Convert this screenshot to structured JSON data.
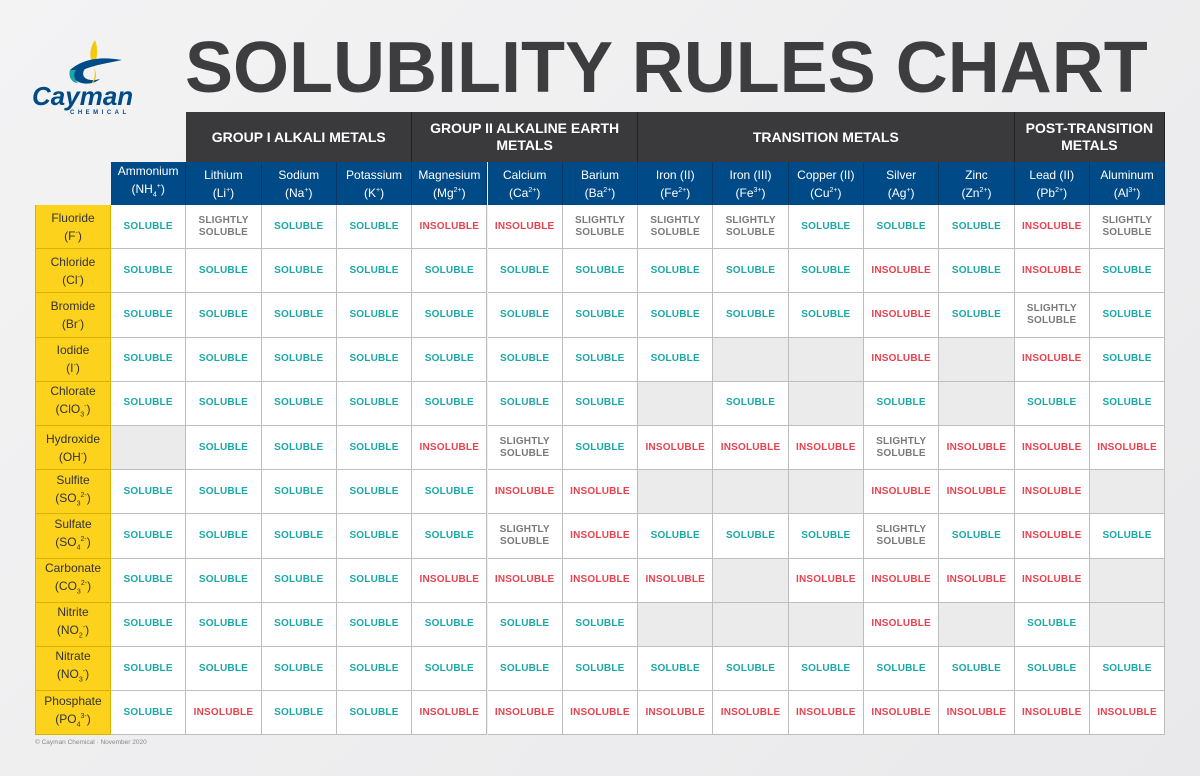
{
  "header": {
    "title": "SOLUBILITY RULES CHART",
    "logo_text": "Cayman",
    "logo_subtext": "CHEMICAL"
  },
  "footer": "© Cayman Chemical · November 2020",
  "colors": {
    "soluble": "#1aa8a6",
    "insoluble": "#e8424f",
    "slightly": "#7a7a7a",
    "cation_header": "#004b87",
    "anion_header": "#fdd21c",
    "group_header": "#3a3a3c",
    "empty": "#ebebec"
  },
  "chart_data": {
    "type": "table",
    "title": "SOLUBILITY RULES CHART",
    "groups": [
      {
        "label": "GROUP I ALKALI METALS",
        "start": 1,
        "span": 3
      },
      {
        "label": "GROUP II ALKALINE EARTH METALS",
        "start": 4,
        "span": 3
      },
      {
        "label": "TRANSITION METALS",
        "start": 7,
        "span": 5
      },
      {
        "label": "POST-TRANSITION METALS",
        "start": 12,
        "span": 2
      }
    ],
    "columns": [
      {
        "name": "Ammonium",
        "formula": [
          "NH",
          "4",
          "+"
        ]
      },
      {
        "name": "Lithium",
        "formula": [
          "Li",
          "",
          "+"
        ]
      },
      {
        "name": "Sodium",
        "formula": [
          "Na",
          "",
          "+"
        ]
      },
      {
        "name": "Potassium",
        "formula": [
          "K",
          "",
          "+"
        ]
      },
      {
        "name": "Magnesium",
        "formula": [
          "Mg",
          "",
          "2+"
        ]
      },
      {
        "name": "Calcium",
        "formula": [
          "Ca",
          "",
          "2+"
        ]
      },
      {
        "name": "Barium",
        "formula": [
          "Ba",
          "",
          "2+"
        ]
      },
      {
        "name": "Iron (II)",
        "formula": [
          "Fe",
          "",
          "2+"
        ]
      },
      {
        "name": "Iron (III)",
        "formula": [
          "Fe",
          "",
          "3+"
        ]
      },
      {
        "name": "Copper (II)",
        "formula": [
          "Cu",
          "",
          "2+"
        ]
      },
      {
        "name": "Silver",
        "formula": [
          "Ag",
          "",
          "+"
        ]
      },
      {
        "name": "Zinc",
        "formula": [
          "Zn",
          "",
          "2+"
        ]
      },
      {
        "name": "Lead (II)",
        "formula": [
          "Pb",
          "",
          "2+"
        ]
      },
      {
        "name": "Aluminum",
        "formula": [
          "Al",
          "",
          "3+"
        ]
      }
    ],
    "rows": [
      {
        "name": "Fluoride",
        "formula": [
          "F",
          "",
          "-"
        ],
        "values": [
          "SOLUBLE",
          "SLIGHTLY SOLUBLE",
          "SOLUBLE",
          "SOLUBLE",
          "INSOLUBLE",
          "INSOLUBLE",
          "SLIGHTLY SOLUBLE",
          "SLIGHTLY SOLUBLE",
          "SLIGHTLY SOLUBLE",
          "SOLUBLE",
          "SOLUBLE",
          "SOLUBLE",
          "INSOLUBLE",
          "SLIGHTLY SOLUBLE"
        ]
      },
      {
        "name": "Chloride",
        "formula": [
          "Cl",
          "",
          "-"
        ],
        "values": [
          "SOLUBLE",
          "SOLUBLE",
          "SOLUBLE",
          "SOLUBLE",
          "SOLUBLE",
          "SOLUBLE",
          "SOLUBLE",
          "SOLUBLE",
          "SOLUBLE",
          "SOLUBLE",
          "INSOLUBLE",
          "SOLUBLE",
          "INSOLUBLE",
          "SOLUBLE"
        ]
      },
      {
        "name": "Bromide",
        "formula": [
          "Br",
          "",
          "-"
        ],
        "values": [
          "SOLUBLE",
          "SOLUBLE",
          "SOLUBLE",
          "SOLUBLE",
          "SOLUBLE",
          "SOLUBLE",
          "SOLUBLE",
          "SOLUBLE",
          "SOLUBLE",
          "SOLUBLE",
          "INSOLUBLE",
          "SOLUBLE",
          "SLIGHTLY SOLUBLE",
          "SOLUBLE"
        ]
      },
      {
        "name": "Iodide",
        "formula": [
          "I",
          "",
          "-"
        ],
        "values": [
          "SOLUBLE",
          "SOLUBLE",
          "SOLUBLE",
          "SOLUBLE",
          "SOLUBLE",
          "SOLUBLE",
          "SOLUBLE",
          "SOLUBLE",
          "",
          "",
          "INSOLUBLE",
          "",
          "INSOLUBLE",
          "SOLUBLE"
        ]
      },
      {
        "name": "Chlorate",
        "formula": [
          "ClO",
          "3",
          "-"
        ],
        "values": [
          "SOLUBLE",
          "SOLUBLE",
          "SOLUBLE",
          "SOLUBLE",
          "SOLUBLE",
          "SOLUBLE",
          "SOLUBLE",
          "",
          "SOLUBLE",
          "",
          "SOLUBLE",
          "",
          "SOLUBLE",
          "SOLUBLE"
        ]
      },
      {
        "name": "Hydroxide",
        "formula": [
          "OH",
          "",
          "-"
        ],
        "values": [
          "",
          "SOLUBLE",
          "SOLUBLE",
          "SOLUBLE",
          "INSOLUBLE",
          "SLIGHTLY SOLUBLE",
          "SOLUBLE",
          "INSOLUBLE",
          "INSOLUBLE",
          "INSOLUBLE",
          "SLIGHTLY SOLUBLE",
          "INSOLUBLE",
          "INSOLUBLE",
          "INSOLUBLE"
        ]
      },
      {
        "name": "Sulfite",
        "formula": [
          "SO",
          "3",
          "2-"
        ],
        "values": [
          "SOLUBLE",
          "SOLUBLE",
          "SOLUBLE",
          "SOLUBLE",
          "SOLUBLE",
          "INSOLUBLE",
          "INSOLUBLE",
          "",
          "",
          "",
          "INSOLUBLE",
          "INSOLUBLE",
          "INSOLUBLE",
          ""
        ]
      },
      {
        "name": "Sulfate",
        "formula": [
          "SO",
          "4",
          "2-"
        ],
        "values": [
          "SOLUBLE",
          "SOLUBLE",
          "SOLUBLE",
          "SOLUBLE",
          "SOLUBLE",
          "SLIGHTLY SOLUBLE",
          "INSOLUBLE",
          "SOLUBLE",
          "SOLUBLE",
          "SOLUBLE",
          "SLIGHTLY SOLUBLE",
          "SOLUBLE",
          "INSOLUBLE",
          "SOLUBLE"
        ]
      },
      {
        "name": "Carbonate",
        "formula": [
          "CO",
          "3",
          "2-"
        ],
        "values": [
          "SOLUBLE",
          "SOLUBLE",
          "SOLUBLE",
          "SOLUBLE",
          "INSOLUBLE",
          "INSOLUBLE",
          "INSOLUBLE",
          "INSOLUBLE",
          "",
          "INSOLUBLE",
          "INSOLUBLE",
          "INSOLUBLE",
          "INSOLUBLE",
          ""
        ]
      },
      {
        "name": "Nitrite",
        "formula": [
          "NO",
          "2",
          "-"
        ],
        "values": [
          "SOLUBLE",
          "SOLUBLE",
          "SOLUBLE",
          "SOLUBLE",
          "SOLUBLE",
          "SOLUBLE",
          "SOLUBLE",
          "",
          "",
          "",
          "INSOLUBLE",
          "",
          "SOLUBLE",
          ""
        ]
      },
      {
        "name": "Nitrate",
        "formula": [
          "NO",
          "3",
          "-"
        ],
        "values": [
          "SOLUBLE",
          "SOLUBLE",
          "SOLUBLE",
          "SOLUBLE",
          "SOLUBLE",
          "SOLUBLE",
          "SOLUBLE",
          "SOLUBLE",
          "SOLUBLE",
          "SOLUBLE",
          "SOLUBLE",
          "SOLUBLE",
          "SOLUBLE",
          "SOLUBLE"
        ]
      },
      {
        "name": "Phosphate",
        "formula": [
          "PO",
          "4",
          "3-"
        ],
        "values": [
          "SOLUBLE",
          "INSOLUBLE",
          "SOLUBLE",
          "SOLUBLE",
          "INSOLUBLE",
          "INSOLUBLE",
          "INSOLUBLE",
          "INSOLUBLE",
          "INSOLUBLE",
          "INSOLUBLE",
          "INSOLUBLE",
          "INSOLUBLE",
          "INSOLUBLE",
          "INSOLUBLE"
        ]
      }
    ]
  }
}
